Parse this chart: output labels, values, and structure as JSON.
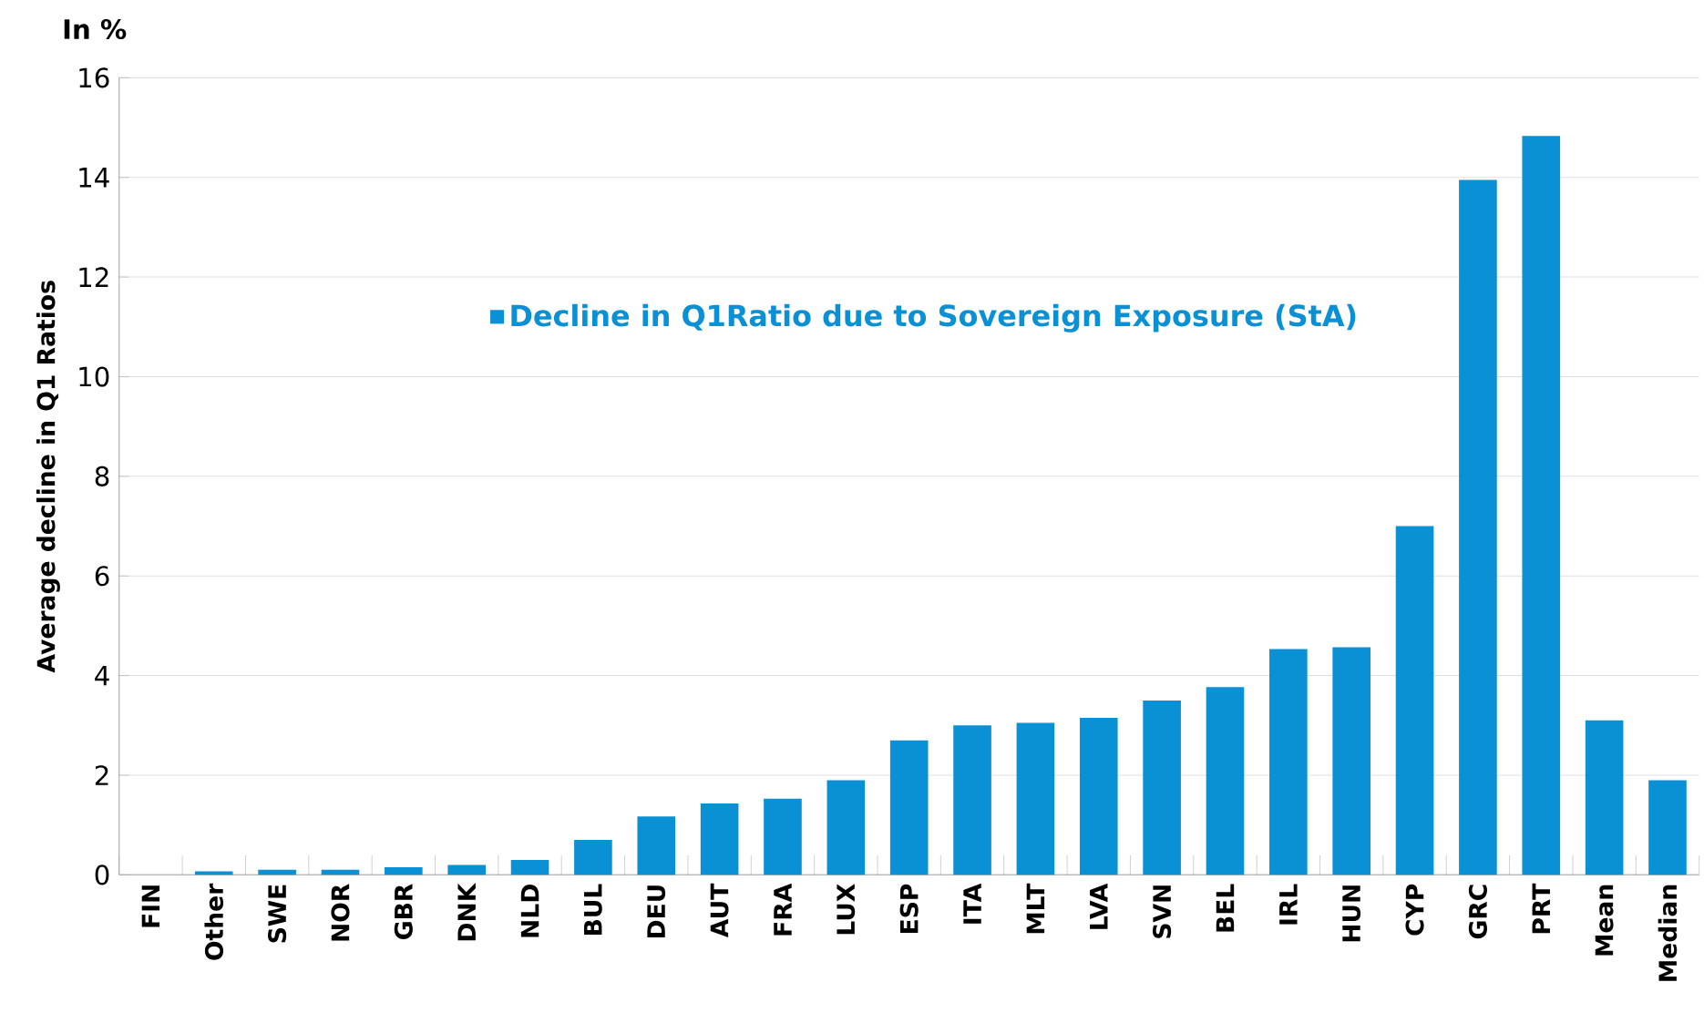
{
  "chart_data": {
    "type": "bar",
    "ylabel": "Average decline in Q1 Ratios",
    "annotations": [
      "In %"
    ],
    "categories": [
      "FIN",
      "Other",
      "SWE",
      "NOR",
      "GBR",
      "DNK",
      "NLD",
      "BUL",
      "DEU",
      "AUT",
      "FRA",
      "LUX",
      "ESP",
      "ITA",
      "MLT",
      "LVA",
      "SVN",
      "BEL",
      "IRL",
      "HUN",
      "CYP",
      "GRC",
      "PRT",
      "Mean",
      "Median"
    ],
    "series": [
      {
        "name": "Decline in Q1Ratio due to Sovereign Exposure (StA)",
        "color": "#0a90d4",
        "values": [
          0,
          0.07,
          0.1,
          0.1,
          0.15,
          0.2,
          0.3,
          0.7,
          1.17,
          1.43,
          1.53,
          1.9,
          2.7,
          3.0,
          3.05,
          3.15,
          3.5,
          3.77,
          4.53,
          4.57,
          7.0,
          13.95,
          14.83,
          3.1,
          1.9
        ]
      }
    ],
    "ylim": [
      0,
      16
    ],
    "yticks": [
      0,
      2,
      4,
      6,
      8,
      10,
      12,
      14,
      16
    ],
    "grid": "y",
    "legend": "top"
  }
}
